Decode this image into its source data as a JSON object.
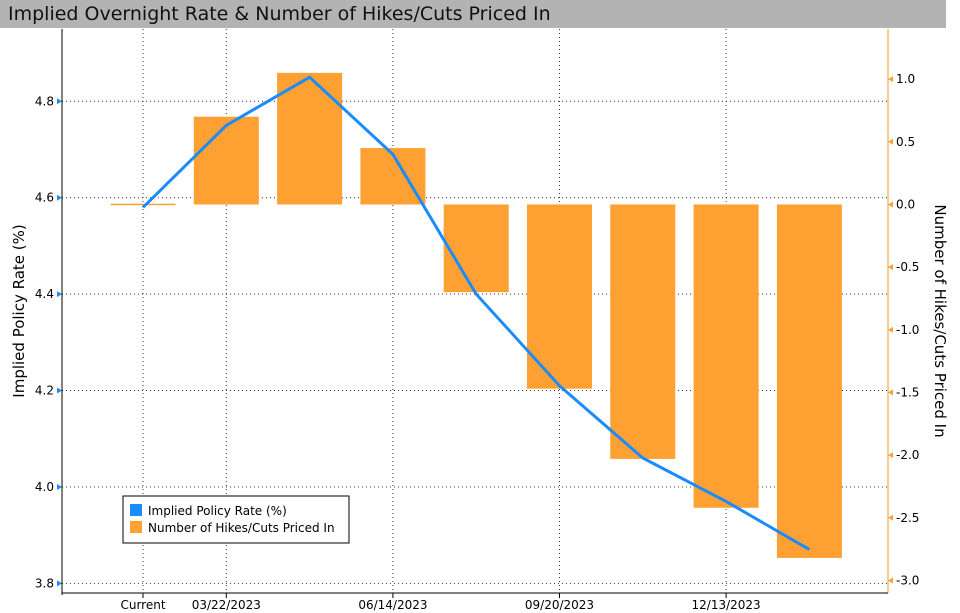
{
  "chart_data": {
    "type": "bar+line",
    "title": "Implied Overnight Rate & Number of Hikes/Cuts Priced In",
    "ylabel_left": "Implied Policy Rate (%)",
    "ylabel_right": "Number of Hikes/Cuts Priced In",
    "ylim_left": [
      3.78,
      4.95
    ],
    "ylim_right": [
      -3.1,
      1.4
    ],
    "yticks_left": [
      "3.8",
      "4.0",
      "4.2",
      "4.4",
      "4.6",
      "4.8"
    ],
    "yticks_left_values": [
      3.8,
      4.0,
      4.2,
      4.4,
      4.6,
      4.8
    ],
    "yticks_right": [
      "-3.0",
      "-2.5",
      "-2.0",
      "-1.5",
      "-1.0",
      "-0.5",
      "0.0",
      "0.5",
      "1.0"
    ],
    "yticks_right_values": [
      -3.0,
      -2.5,
      -2.0,
      -1.5,
      -1.0,
      -0.5,
      0.0,
      0.5,
      1.0
    ],
    "x_ticklabels": [
      {
        "label": "Current",
        "index": 0
      },
      {
        "label": "03/22/2023",
        "index": 1
      },
      {
        "label": "06/14/2023",
        "index": 3
      },
      {
        "label": "09/20/2023",
        "index": 5
      },
      {
        "label": "12/13/2023",
        "index": 7
      }
    ],
    "grid": true,
    "legend_position": "bottom-left",
    "series": [
      {
        "name": "Implied Policy Rate (%)",
        "type": "line",
        "axis": "left",
        "color": "#1a8cff",
        "values": [
          4.58,
          4.75,
          4.85,
          4.69,
          4.4,
          4.21,
          4.06,
          3.97,
          3.87
        ]
      },
      {
        "name": "Number of Hikes/Cuts Priced In",
        "type": "bar",
        "axis": "right",
        "color": "#ffa033",
        "values": [
          0.0,
          0.7,
          1.05,
          0.45,
          -0.7,
          -1.47,
          -2.03,
          -2.42,
          -2.82
        ]
      }
    ]
  }
}
